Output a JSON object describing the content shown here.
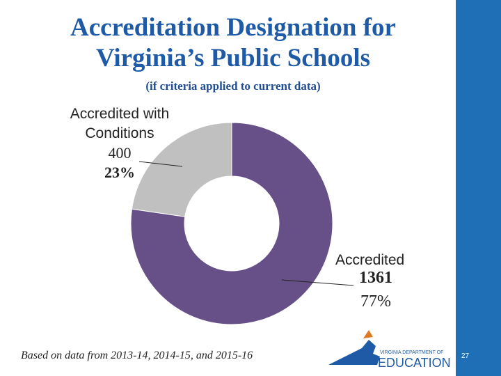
{
  "chart_data": {
    "type": "donut",
    "title": "Accreditation Designation for Virginia’s Public Schools",
    "subtitle": "(if criteria applied to current data)",
    "categories": [
      "Accredited",
      "Accredited with Conditions"
    ],
    "values": [
      1361,
      400
    ],
    "percents": [
      77,
      23
    ],
    "percent_labels": [
      "77%",
      "23%"
    ],
    "colors": [
      "#675088",
      "#c0c0c0"
    ],
    "footnote": "Based on data from 2013-14, 2014-15, and 2015-16"
  },
  "logo": {
    "line1": "VIRGINIA DEPARTMENT OF",
    "line2": "EDUCATION"
  },
  "page_number": "27"
}
